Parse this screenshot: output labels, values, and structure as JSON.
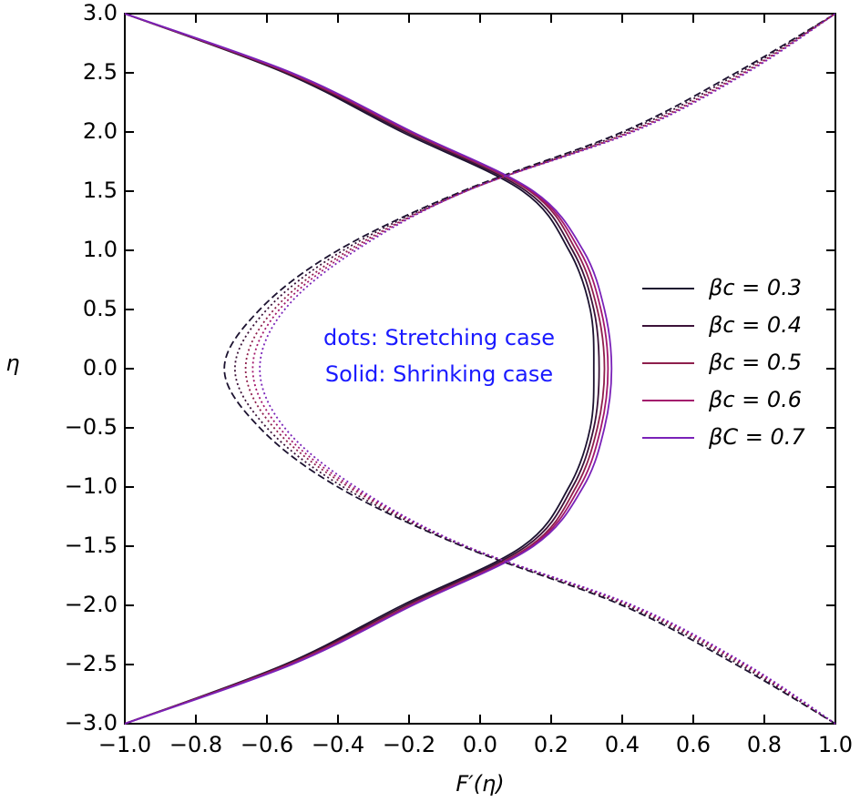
{
  "chart_data": {
    "type": "line",
    "orientation": "vertical",
    "x_label": "F′(η)",
    "y_label": "η",
    "annotations": [
      "dots: Stretching case",
      "Solid: Shrinking case"
    ],
    "annotation_color": "#1a1aff",
    "eta": [
      -3,
      -2.5,
      -2,
      -1.5,
      -1,
      -0.5,
      0,
      0.5,
      1,
      1.5,
      2,
      2.5,
      3
    ],
    "series": [
      {
        "name": "βc = 0.3",
        "color": "#1c1230",
        "stretching_style": "dashed",
        "values": [
          -1,
          -0.55,
          -0.22,
          0.12,
          0.25,
          0.31,
          0.32,
          0.31,
          0.25,
          0.12,
          -0.22,
          -0.55,
          -1
        ],
        "stretching_values": [
          1,
          0.72,
          0.4,
          -0.05,
          -0.4,
          -0.62,
          -0.72,
          -0.62,
          -0.4,
          -0.05,
          0.4,
          0.72,
          1
        ]
      },
      {
        "name": "βc = 0.4",
        "color": "#3b1238",
        "stretching_style": "dotted",
        "values": [
          -1,
          -0.545,
          -0.21,
          0.13,
          0.26,
          0.32,
          0.335,
          0.32,
          0.26,
          0.13,
          -0.21,
          -0.545,
          -1
        ],
        "stretching_values": [
          1,
          0.73,
          0.41,
          -0.045,
          -0.385,
          -0.6,
          -0.69,
          -0.6,
          -0.385,
          -0.045,
          0.41,
          0.73,
          1
        ]
      },
      {
        "name": "βc = 0.5",
        "color": "#8e1f4c",
        "stretching_style": "dotted",
        "values": [
          -1,
          -0.54,
          -0.2,
          0.14,
          0.27,
          0.33,
          0.35,
          0.33,
          0.27,
          0.14,
          -0.2,
          -0.54,
          -1
        ],
        "stretching_values": [
          1,
          0.74,
          0.42,
          -0.04,
          -0.37,
          -0.58,
          -0.66,
          -0.58,
          -0.37,
          -0.04,
          0.42,
          0.74,
          1
        ]
      },
      {
        "name": "βc = 0.6",
        "color": "#a3186c",
        "stretching_style": "dotted",
        "values": [
          -1,
          -0.535,
          -0.195,
          0.145,
          0.28,
          0.34,
          0.36,
          0.34,
          0.28,
          0.145,
          -0.195,
          -0.535,
          -1
        ],
        "stretching_values": [
          1,
          0.745,
          0.425,
          -0.04,
          -0.36,
          -0.565,
          -0.64,
          -0.565,
          -0.36,
          -0.04,
          0.425,
          0.745,
          1
        ]
      },
      {
        "name": "βC = 0.7",
        "color": "#7a22b8",
        "stretching_style": "dotted",
        "values": [
          -1,
          -0.53,
          -0.19,
          0.15,
          0.29,
          0.35,
          0.37,
          0.35,
          0.29,
          0.15,
          -0.19,
          -0.53,
          -1
        ],
        "stretching_values": [
          1,
          0.75,
          0.43,
          -0.04,
          -0.35,
          -0.55,
          -0.62,
          -0.55,
          -0.35,
          -0.04,
          0.43,
          0.75,
          1
        ]
      }
    ],
    "xlim": [
      -1,
      1
    ],
    "xticks": [
      {
        "value": -1,
        "label": "−1.0"
      },
      {
        "value": -0.8,
        "label": "−0.8"
      },
      {
        "value": -0.6,
        "label": "−0.6"
      },
      {
        "value": -0.4,
        "label": "−0.4"
      },
      {
        "value": -0.2,
        "label": "−0.2"
      },
      {
        "value": 0,
        "label": "0.0"
      },
      0.2,
      0.4,
      0.6,
      0.8,
      {
        "value": 1,
        "label": "1.0"
      }
    ],
    "ylim": [
      -3,
      3
    ],
    "yticks": [
      {
        "value": -3,
        "label": "−3.0"
      },
      {
        "value": -2.5,
        "label": "−2.5"
      },
      {
        "value": -2,
        "label": "−2.0"
      },
      {
        "value": -1.5,
        "label": "−1.5"
      },
      {
        "value": -1,
        "label": "−1.0"
      },
      {
        "value": -0.5,
        "label": "−0.5"
      },
      {
        "value": 0,
        "label": "0.0"
      },
      0.5,
      {
        "value": 1,
        "label": "1.0"
      },
      1.5,
      {
        "value": 2,
        "label": "2.0"
      },
      2.5,
      {
        "value": 3,
        "label": "3.0"
      }
    ],
    "legend": "right"
  }
}
